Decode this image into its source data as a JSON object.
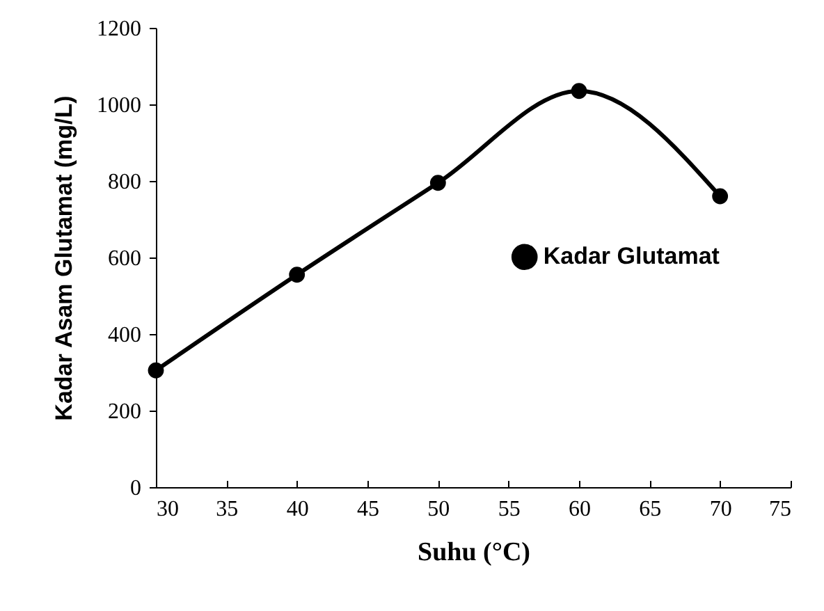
{
  "chart_data": {
    "type": "line",
    "xlabel": "Suhu (°C)",
    "ylabel": "Kadar Asam Glutamat (mg/L)",
    "x": [
      30,
      40,
      50,
      60,
      70
    ],
    "series": [
      {
        "name": "Kadar Glutamat",
        "color": "#000000",
        "values": [
          305,
          555,
          795,
          1035,
          760
        ]
      }
    ],
    "xlim": [
      30,
      75
    ],
    "xticks": [
      30,
      35,
      40,
      45,
      50,
      55,
      60,
      65,
      70,
      75
    ],
    "ylim": [
      0,
      1200
    ],
    "yticks": [
      0,
      200,
      400,
      600,
      800,
      1000,
      1200
    ],
    "grid": false,
    "legend": "right",
    "marker": "circle",
    "line_style": "solid"
  }
}
